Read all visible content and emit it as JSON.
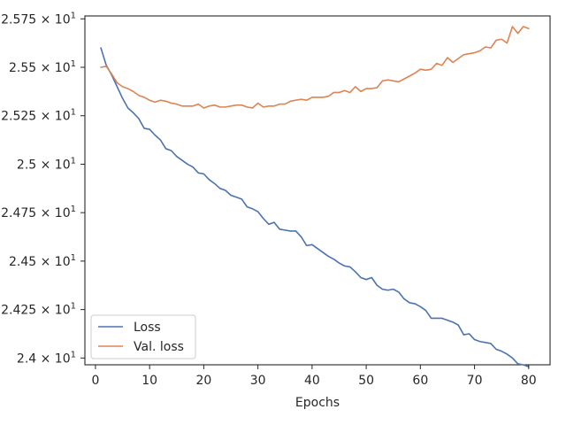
{
  "chart_data": {
    "type": "line",
    "title": "",
    "xlabel": "Epochs",
    "ylabel": "",
    "xlim": [
      -1.95,
      83.95
    ],
    "ylim": [
      23.965,
      25.765
    ],
    "x_ticks": [
      {
        "value": 0,
        "label": "0"
      },
      {
        "value": 10,
        "label": "10"
      },
      {
        "value": 20,
        "label": "20"
      },
      {
        "value": 30,
        "label": "30"
      },
      {
        "value": 40,
        "label": "40"
      },
      {
        "value": 50,
        "label": "50"
      },
      {
        "value": 60,
        "label": "60"
      },
      {
        "value": 70,
        "label": "70"
      },
      {
        "value": 80,
        "label": "80"
      }
    ],
    "y_ticks": [
      {
        "value": 24.0,
        "label": "2.4 × 10",
        "exp": "1"
      },
      {
        "value": 24.25,
        "label": "2.425 × 10",
        "exp": "1"
      },
      {
        "value": 24.5,
        "label": "2.45 × 10",
        "exp": "1"
      },
      {
        "value": 24.75,
        "label": "2.475 × 10",
        "exp": "1"
      },
      {
        "value": 25.0,
        "label": "2.5 × 10",
        "exp": "1"
      },
      {
        "value": 25.25,
        "label": "2.525 × 10",
        "exp": "1"
      },
      {
        "value": 25.5,
        "label": "2.55 × 10",
        "exp": "1"
      },
      {
        "value": 25.75,
        "label": "2.575 × 10",
        "exp": "1"
      }
    ],
    "legend_position": "bottom-left",
    "grid": false,
    "series": [
      {
        "name": "Loss",
        "color": "#4c72b0",
        "x": [
          1,
          2,
          3,
          4,
          5,
          6,
          7,
          8,
          9,
          10,
          11,
          12,
          13,
          14,
          15,
          16,
          17,
          18,
          19,
          20,
          21,
          22,
          23,
          24,
          25,
          26,
          27,
          28,
          29,
          30,
          31,
          32,
          33,
          34,
          35,
          36,
          37,
          38,
          39,
          40,
          41,
          42,
          43,
          44,
          45,
          46,
          47,
          48,
          49,
          50,
          51,
          52,
          53,
          54,
          55,
          56,
          57,
          58,
          59,
          60,
          61,
          62,
          63,
          64,
          65,
          66,
          67,
          68,
          69,
          70,
          71,
          72,
          73,
          74,
          75,
          76,
          77,
          78,
          79,
          80
        ],
        "values": [
          25.6,
          25.51,
          25.46,
          25.4,
          25.34,
          25.29,
          25.265,
          25.235,
          25.185,
          25.18,
          25.15,
          25.125,
          25.08,
          25.07,
          25.04,
          25.02,
          25.0,
          24.985,
          24.955,
          24.95,
          24.92,
          24.9,
          24.875,
          24.865,
          24.84,
          24.83,
          24.82,
          24.78,
          24.77,
          24.755,
          24.72,
          24.69,
          24.7,
          24.665,
          24.66,
          24.655,
          24.655,
          24.625,
          24.58,
          24.585,
          24.565,
          24.545,
          24.525,
          24.51,
          24.49,
          24.475,
          24.47,
          24.445,
          24.415,
          24.405,
          24.415,
          24.375,
          24.355,
          24.35,
          24.355,
          24.34,
          24.305,
          24.285,
          24.28,
          24.265,
          24.245,
          24.205,
          24.205,
          24.205,
          24.195,
          24.185,
          24.17,
          24.12,
          24.125,
          24.095,
          24.085,
          24.08,
          24.075,
          24.045,
          24.035,
          24.02,
          24.0,
          23.97,
          23.965,
          23.955
        ]
      },
      {
        "name": "Val. loss",
        "color": "#dd8452",
        "x": [
          1,
          2,
          3,
          4,
          5,
          6,
          7,
          8,
          9,
          10,
          11,
          12,
          13,
          14,
          15,
          16,
          17,
          18,
          19,
          20,
          21,
          22,
          23,
          24,
          25,
          26,
          27,
          28,
          29,
          30,
          31,
          32,
          33,
          34,
          35,
          36,
          37,
          38,
          39,
          40,
          41,
          42,
          43,
          44,
          45,
          46,
          47,
          48,
          49,
          50,
          51,
          52,
          53,
          54,
          55,
          56,
          57,
          58,
          59,
          60,
          61,
          62,
          63,
          64,
          65,
          66,
          67,
          68,
          69,
          70,
          71,
          72,
          73,
          74,
          75,
          76,
          77,
          78,
          79,
          80
        ],
        "values": [
          25.5,
          25.505,
          25.465,
          25.42,
          25.4,
          25.39,
          25.375,
          25.355,
          25.345,
          25.33,
          25.32,
          25.33,
          25.325,
          25.315,
          25.31,
          25.3,
          25.3,
          25.3,
          25.31,
          25.29,
          25.3,
          25.305,
          25.295,
          25.295,
          25.3,
          25.305,
          25.305,
          25.295,
          25.29,
          25.315,
          25.295,
          25.3,
          25.3,
          25.31,
          25.31,
          25.325,
          25.33,
          25.335,
          25.33,
          25.345,
          25.345,
          25.345,
          25.35,
          25.37,
          25.37,
          25.38,
          25.37,
          25.4,
          25.375,
          25.39,
          25.39,
          25.395,
          25.43,
          25.435,
          25.43,
          25.425,
          25.44,
          25.455,
          25.47,
          25.49,
          25.485,
          25.49,
          25.52,
          25.51,
          25.55,
          25.525,
          25.545,
          25.565,
          25.57,
          25.575,
          25.585,
          25.605,
          25.6,
          25.64,
          25.645,
          25.625,
          25.71,
          25.675,
          25.71,
          25.7
        ]
      }
    ]
  }
}
